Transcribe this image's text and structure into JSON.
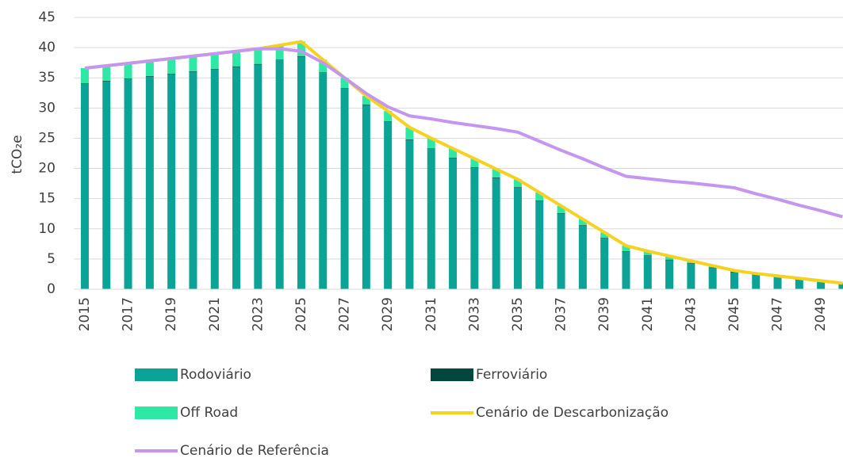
{
  "chart_data": {
    "type": "bar",
    "stacked": true,
    "y_label": "tCO₂e",
    "categories": [
      "2015",
      null,
      "2017",
      null,
      "2019",
      null,
      "2021",
      null,
      "2023",
      null,
      "2025",
      null,
      "2027",
      null,
      "2029",
      null,
      "2031",
      null,
      "2033",
      null,
      "2035",
      null,
      "2037",
      null,
      "2039",
      null,
      "2041",
      null,
      "2043",
      null,
      "2045",
      null,
      "2047",
      null,
      "2049",
      null
    ],
    "series": [
      {
        "name": "Rodoviário",
        "color": "#0aa396",
        "values": [
          34,
          34.4,
          34.8,
          35.2,
          35.6,
          36,
          36.4,
          36.8,
          37.2,
          37.9,
          38.5,
          35.8,
          33.2,
          30.5,
          27.7,
          24.7,
          23.2,
          21.7,
          20.1,
          18.4,
          16.8,
          14.6,
          12.5,
          10.5,
          8.4,
          6.2,
          5.5,
          4.8,
          4.2,
          3.5,
          2.8,
          2.4,
          2.0,
          1.6,
          1.2,
          0.8
        ]
      },
      {
        "name": "Ferroviário",
        "color": "#00473e",
        "values": [
          0.1,
          0.1,
          0.1,
          0.1,
          0.1,
          0.1,
          0.1,
          0.1,
          0.1,
          0.1,
          0.1,
          0.1,
          0.1,
          0.1,
          0.1,
          0.1,
          0.1,
          0.1,
          0.1,
          0.1,
          0.1,
          0.1,
          0.1,
          0.1,
          0.1,
          0.1,
          0.1,
          0.1,
          0.1,
          0.1,
          0.1,
          0.1,
          0.1,
          0.1,
          0.1,
          0.1
        ]
      },
      {
        "name": "Off Road",
        "color": "#2ee8a5",
        "values": [
          2.5,
          2.5,
          2.5,
          2.5,
          2.5,
          2.5,
          2.5,
          2.5,
          2.5,
          2.4,
          2.4,
          2.1,
          1.7,
          1.4,
          1.7,
          2.0,
          1.7,
          1.5,
          1.4,
          1.4,
          1.3,
          1.3,
          1.2,
          1.0,
          0.9,
          0.9,
          0.7,
          0.6,
          0.4,
          0.3,
          0.2,
          0.1,
          0.1,
          0.1,
          0.1,
          0.1
        ]
      },
      {
        "name": "Cenário de Descarbonização",
        "type": "line",
        "color": "#f5d21f",
        "values": [
          36.6,
          37,
          37.4,
          37.8,
          38.2,
          38.6,
          39,
          39.4,
          39.8,
          40.4,
          41,
          38,
          35,
          32,
          29.5,
          26.8,
          25,
          23.3,
          21.6,
          19.9,
          18.2,
          16,
          13.8,
          11.6,
          9.4,
          7.2,
          6.3,
          5.5,
          4.7,
          3.9,
          3.1,
          2.6,
          2.2,
          1.8,
          1.4,
          1.0
        ]
      },
      {
        "name": "Cenário de Referência",
        "type": "line",
        "color": "#c496f0",
        "values": [
          36.6,
          37,
          37.4,
          37.8,
          38.2,
          38.6,
          39,
          39.4,
          39.8,
          39.8,
          39.4,
          37.5,
          35,
          32.4,
          30.2,
          28.7,
          28.2,
          27.6,
          27.1,
          26.6,
          26,
          24.5,
          23,
          21.6,
          20.1,
          18.7,
          18.3,
          17.9,
          17.6,
          17.2,
          16.8,
          15.8,
          14.9,
          13.9,
          13,
          12
        ]
      }
    ],
    "ylim": [
      0,
      45
    ],
    "yticks": [
      0,
      5,
      10,
      15,
      20,
      25,
      30,
      35,
      40,
      45
    ],
    "grid": true,
    "legend": "bottom"
  }
}
